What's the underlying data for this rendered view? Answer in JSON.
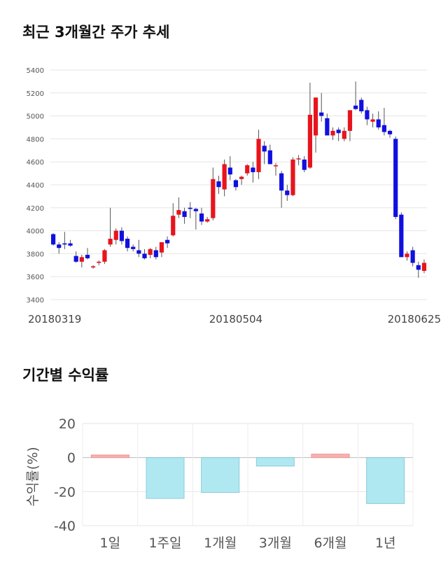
{
  "titles": {
    "price_trend": "최근 3개월간 주가 추세",
    "returns": "기간별 수익률"
  },
  "chart_data": [
    {
      "type": "candlestick",
      "title": "최근 3개월간 주가 추세",
      "ylim": [
        3400,
        5400
      ],
      "yticks": [
        3400,
        3600,
        3800,
        4000,
        4200,
        4400,
        4600,
        4800,
        5000,
        5200,
        5400
      ],
      "xtick_labels": [
        {
          "index": 0,
          "label": "20180319"
        },
        {
          "index": 32,
          "label": "20180504"
        },
        {
          "index": 67,
          "label": "20180625"
        }
      ],
      "grid": true,
      "colors": {
        "up": "#e8141c",
        "down": "#1010e0",
        "wick": "#555555",
        "grid": "#e6e6e6"
      },
      "ohlc": [
        [
          3970,
          3980,
          3870,
          3880
        ],
        [
          3880,
          3900,
          3800,
          3850
        ],
        [
          3890,
          3990,
          3840,
          3880
        ],
        [
          3890,
          3920,
          3860,
          3870
        ],
        [
          3780,
          3820,
          3720,
          3730
        ],
        [
          3730,
          3790,
          3680,
          3770
        ],
        [
          3790,
          3850,
          3750,
          3760
        ],
        [
          3680,
          3700,
          3670,
          3690
        ],
        [
          3720,
          3740,
          3700,
          3730
        ],
        [
          3730,
          3840,
          3710,
          3830
        ],
        [
          3880,
          4200,
          3860,
          3930
        ],
        [
          3920,
          4020,
          3880,
          4000
        ],
        [
          4000,
          4030,
          3880,
          3910
        ],
        [
          3930,
          3950,
          3820,
          3850
        ],
        [
          3860,
          3880,
          3820,
          3840
        ],
        [
          3830,
          3920,
          3770,
          3800
        ],
        [
          3800,
          3840,
          3750,
          3760
        ],
        [
          3790,
          3850,
          3760,
          3840
        ],
        [
          3830,
          3860,
          3750,
          3770
        ],
        [
          3810,
          3900,
          3770,
          3900
        ],
        [
          3920,
          3950,
          3850,
          3890
        ],
        [
          3960,
          4240,
          3950,
          4130
        ],
        [
          4140,
          4290,
          4110,
          4180
        ],
        [
          4170,
          4200,
          4060,
          4120
        ],
        [
          4200,
          4250,
          4110,
          4190
        ],
        [
          4190,
          4200,
          4010,
          4170
        ],
        [
          4150,
          4200,
          4050,
          4080
        ],
        [
          4080,
          4120,
          4070,
          4100
        ],
        [
          4110,
          4550,
          4090,
          4450
        ],
        [
          4430,
          4480,
          4320,
          4380
        ],
        [
          4360,
          4620,
          4300,
          4580
        ],
        [
          4550,
          4650,
          4440,
          4490
        ],
        [
          4440,
          4450,
          4350,
          4380
        ],
        [
          4450,
          4480,
          4400,
          4470
        ],
        [
          4500,
          4580,
          4480,
          4570
        ],
        [
          4550,
          4600,
          4420,
          4510
        ],
        [
          4510,
          4880,
          4450,
          4800
        ],
        [
          4740,
          4780,
          4580,
          4690
        ],
        [
          4700,
          4750,
          4580,
          4580
        ],
        [
          4570,
          4590,
          4480,
          4570
        ],
        [
          4500,
          4520,
          4200,
          4350
        ],
        [
          4350,
          4400,
          4260,
          4310
        ],
        [
          4310,
          4640,
          4300,
          4620
        ],
        [
          4630,
          4660,
          4570,
          4630
        ],
        [
          4620,
          4650,
          4510,
          4530
        ],
        [
          4550,
          5290,
          4540,
          5010
        ],
        [
          4830,
          5160,
          4680,
          5160
        ],
        [
          5030,
          5200,
          4950,
          5000
        ],
        [
          4980,
          5020,
          4830,
          4830
        ],
        [
          4830,
          4900,
          4790,
          4870
        ],
        [
          4880,
          4900,
          4780,
          4850
        ],
        [
          4800,
          4900,
          4780,
          4870
        ],
        [
          4870,
          5050,
          4780,
          5050
        ],
        [
          5090,
          5300,
          5050,
          5060
        ],
        [
          5140,
          5160,
          5020,
          5040
        ],
        [
          5050,
          5080,
          4920,
          4970
        ],
        [
          4950,
          5020,
          4900,
          4970
        ],
        [
          4970,
          5040,
          4880,
          4900
        ],
        [
          4920,
          5070,
          4830,
          4860
        ],
        [
          4870,
          4880,
          4810,
          4840
        ],
        [
          4800,
          4820,
          4100,
          4120
        ],
        [
          4140,
          4160,
          3770,
          3770
        ],
        [
          3770,
          3820,
          3740,
          3800
        ],
        [
          3830,
          3860,
          3690,
          3720
        ],
        [
          3700,
          3730,
          3590,
          3660
        ],
        [
          3650,
          3750,
          3630,
          3720
        ]
      ]
    },
    {
      "type": "bar",
      "categories": [
        "1일",
        "1주일",
        "1개월",
        "3개월",
        "6개월",
        "1년"
      ],
      "values": [
        1.5,
        -24,
        -20.5,
        -5,
        2,
        -27
      ],
      "title": "기간별 수익률",
      "xlabel": "",
      "ylabel": "수익률(%)",
      "ylim": [
        -40,
        20
      ],
      "yticks": [
        -40,
        -20,
        0,
        20
      ],
      "grid": true,
      "colors": {
        "positive_fill": "#f7b2b2",
        "positive_edge": "#f08c8c",
        "negative_fill": "#b0e8f2",
        "negative_edge": "#8ccbd8"
      }
    }
  ]
}
